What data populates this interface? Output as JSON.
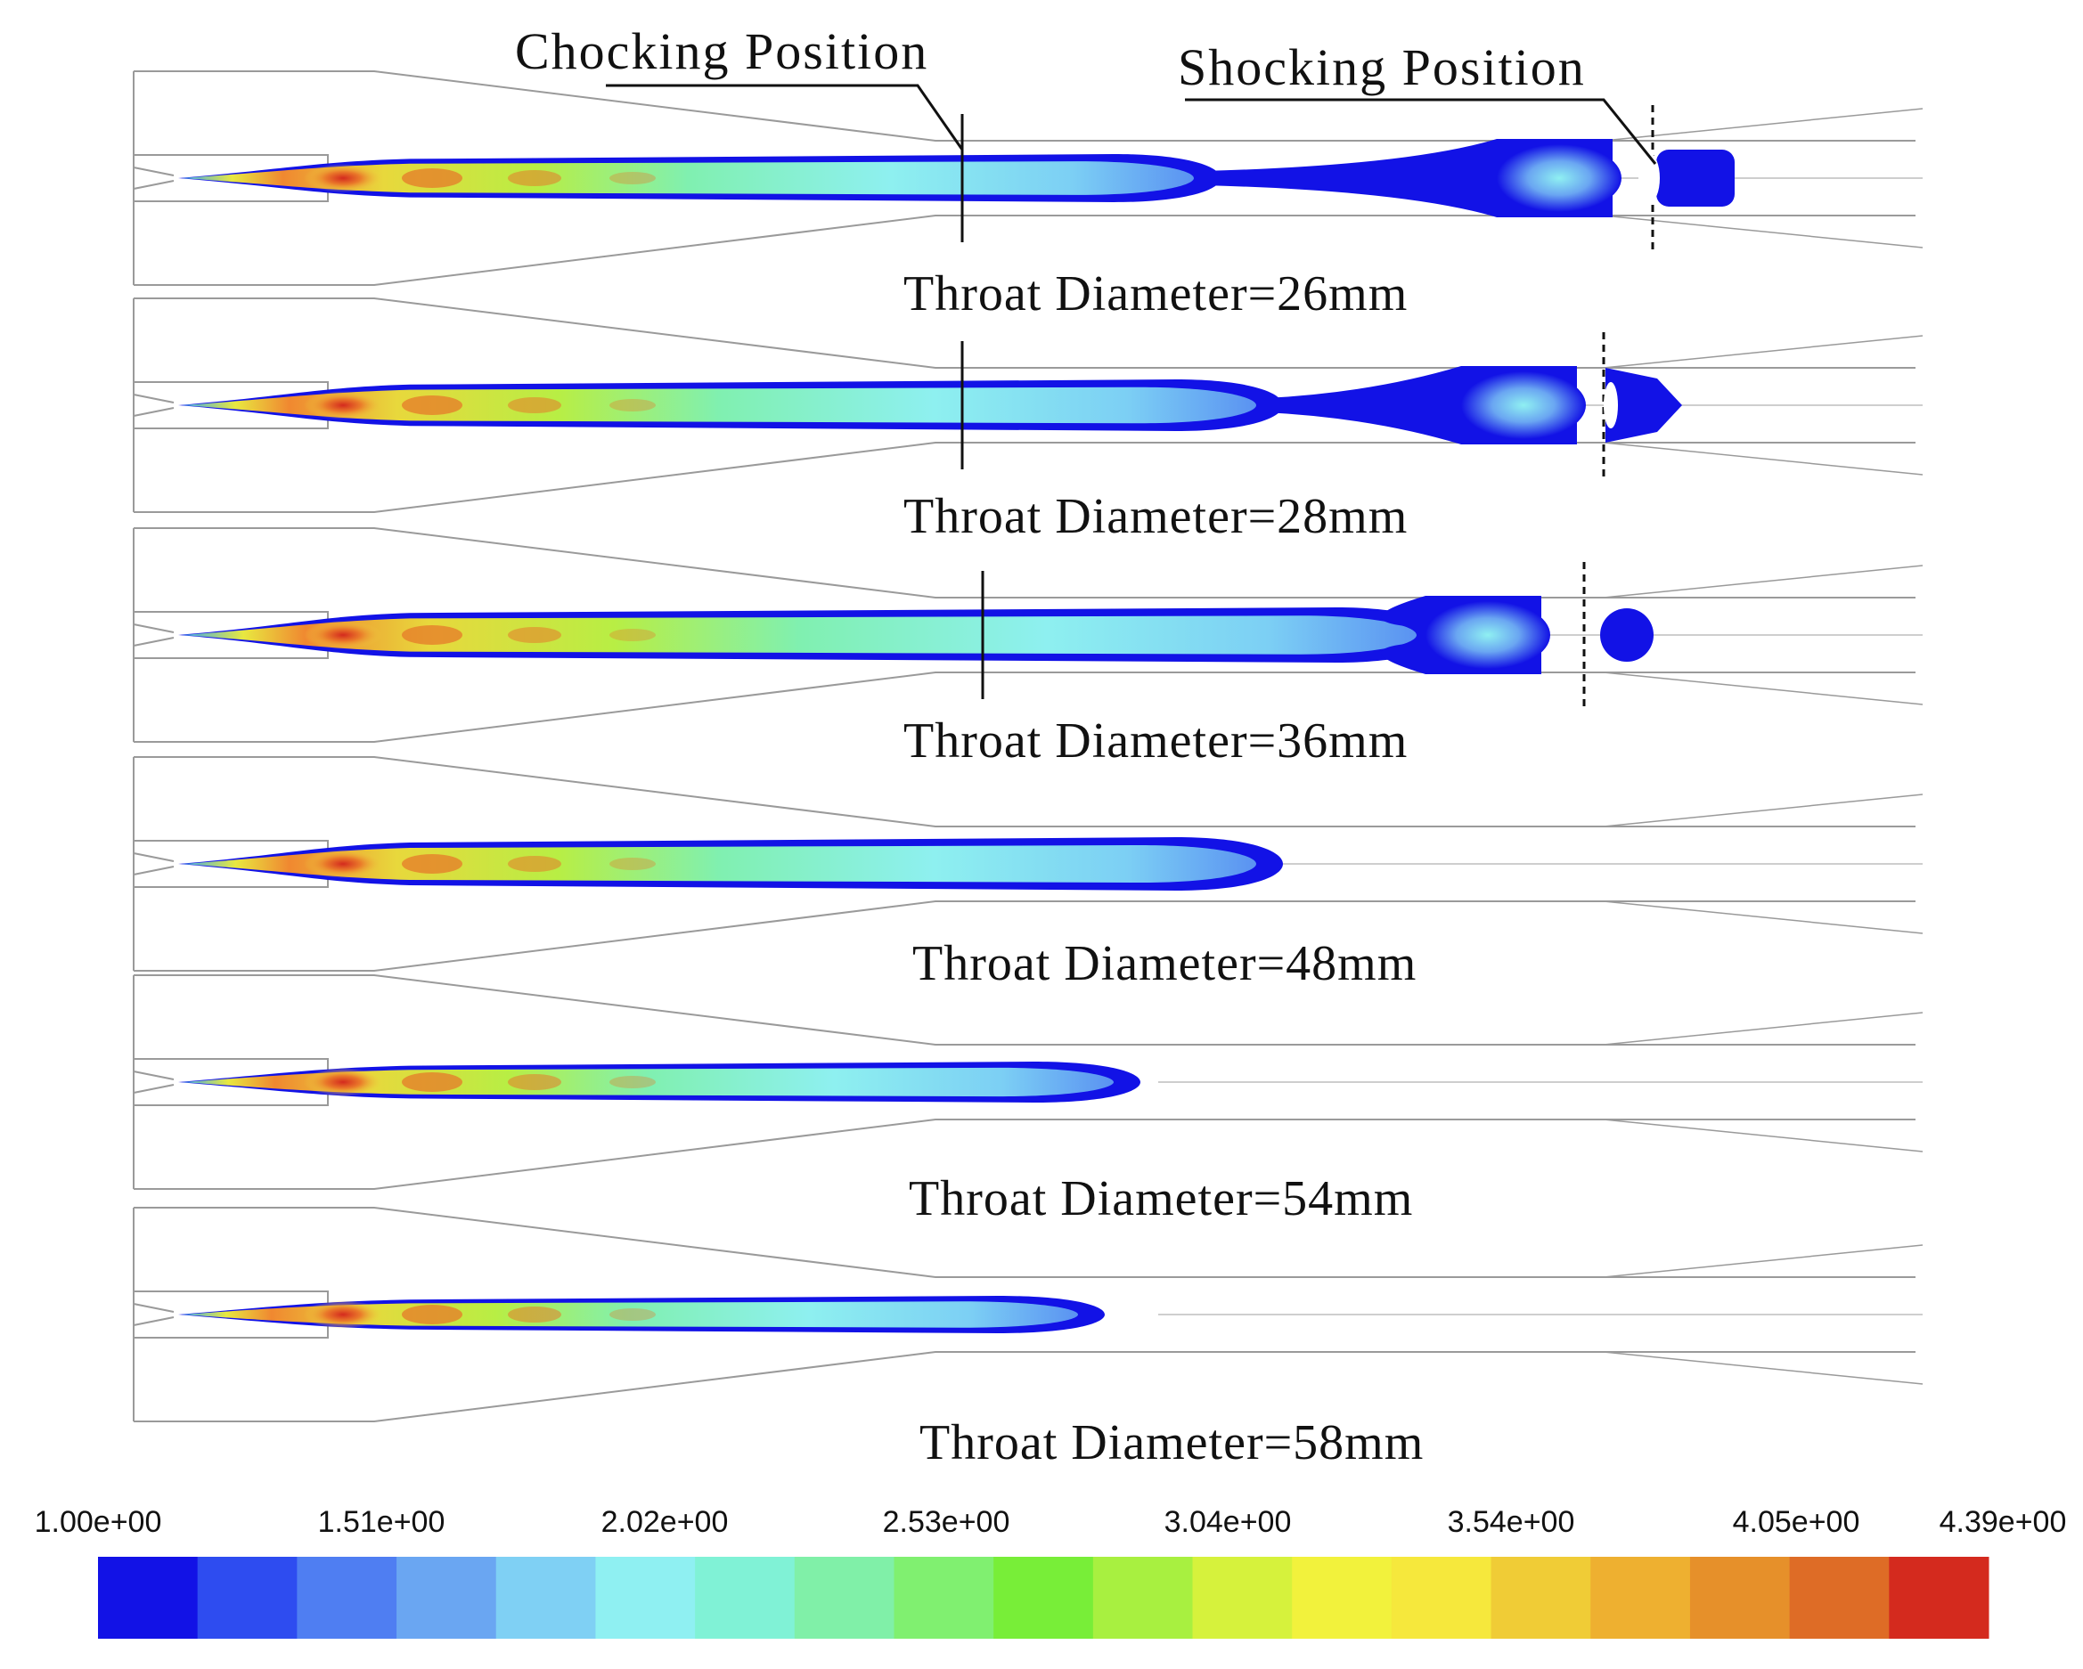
{
  "annotations": {
    "chocking": "Chocking Position",
    "shocking": "Shocking Position"
  },
  "panels": [
    {
      "label": "Throat Diameter=26mm",
      "choke": true,
      "shock": "full"
    },
    {
      "label": "Throat Diameter=28mm",
      "choke": true,
      "shock": "partial"
    },
    {
      "label": "Throat Diameter=36mm",
      "choke": true,
      "shock": "detached"
    },
    {
      "label": "Throat Diameter=48mm",
      "choke": false,
      "shock": "none"
    },
    {
      "label": "Throat Diameter=54mm",
      "choke": false,
      "shock": "none"
    },
    {
      "label": "Throat Diameter=58mm",
      "choke": false,
      "shock": "none"
    }
  ],
  "colorbar": {
    "ticks": [
      "1.00e+00",
      "1.51e+00",
      "2.02e+00",
      "2.53e+00",
      "3.04e+00",
      "3.54e+00",
      "4.05e+00",
      "4.39e+00"
    ],
    "colors": [
      "#1212e6",
      "#2e4cf0",
      "#4f7ef2",
      "#6aa6f2",
      "#7fd0f4",
      "#8ff0f2",
      "#80f2d6",
      "#80f0a8",
      "#80f070",
      "#78ee38",
      "#a8f040",
      "#d6f23c",
      "#f2f23c",
      "#f6e83c",
      "#f0cc36",
      "#eeb030",
      "#e6902a",
      "#de6c26",
      "#d42a1e"
    ]
  }
}
